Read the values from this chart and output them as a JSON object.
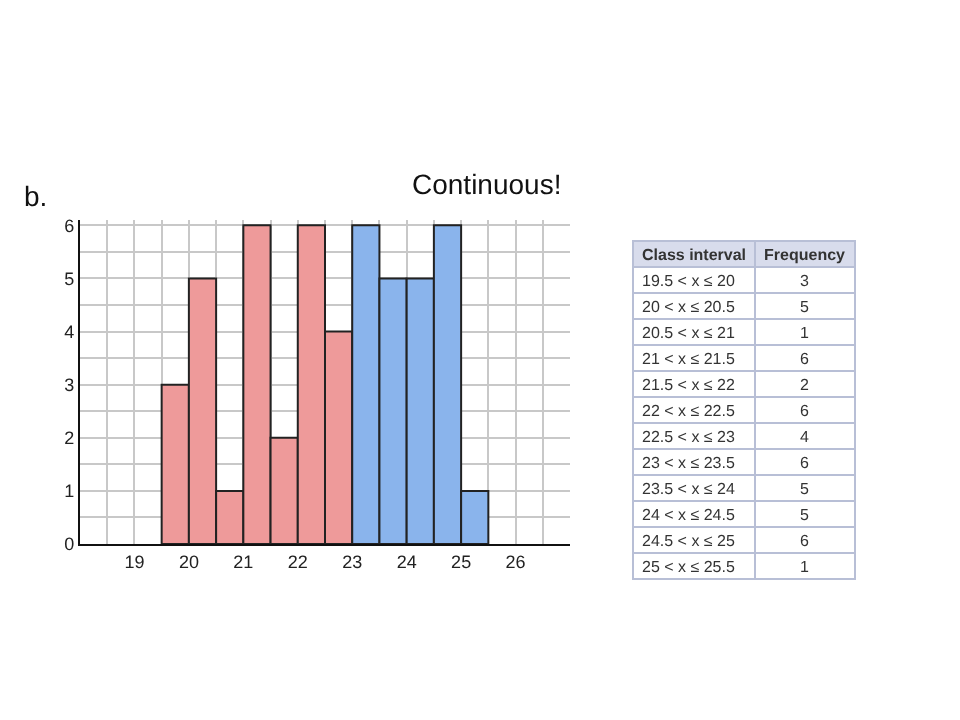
{
  "chart_data": {
    "type": "histogram",
    "annotations": [
      "b.",
      "Continuous!",
      "Class interval",
      "Frequency",
      "19.5 < x ≤ 20",
      "3",
      "20 < x ≤ 20.5",
      "5",
      "20.5 < x ≤ 21",
      "1",
      "21 < x ≤ 21.5",
      "6",
      "21.5 < x ≤ 22",
      "2",
      "22 < x ≤ 22.5",
      "6",
      "22.5 < x ≤ 23",
      "4",
      "23 < x ≤ 23.5",
      "6",
      "23.5 < x ≤ 24",
      "5",
      "24 < x ≤ 24.5",
      "5",
      "24.5 < x ≤ 25",
      "6",
      "25 < x ≤ 25.5",
      "1"
    ],
    "bins": [
      19.5,
      20,
      20.5,
      21,
      21.5,
      22,
      22.5,
      23,
      23.5,
      24,
      24.5,
      25,
      25.5
    ],
    "values": [
      3,
      5,
      1,
      6,
      2,
      6,
      4,
      6,
      5,
      5,
      6,
      1
    ],
    "colors": [
      "#ee9a9a",
      "#ee9a9a",
      "#ee9a9a",
      "#ee9a9a",
      "#ee9a9a",
      "#ee9a9a",
      "#ee9a9a",
      "#8ab4ec",
      "#8ab4ec",
      "#8ab4ec",
      "#8ab4ec",
      "#8ab4ec"
    ],
    "xlim": [
      18,
      27
    ],
    "xticks": [
      {
        "value": 18.5,
        "label": null
      },
      19,
      {
        "value": 19.5,
        "label": null
      },
      20,
      {
        "value": 20.5,
        "label": null
      },
      21,
      {
        "value": 21.5,
        "label": null
      },
      22,
      {
        "value": 22.5,
        "label": null
      },
      23,
      {
        "value": 23.5,
        "label": null
      },
      24,
      {
        "value": 24.5,
        "label": null
      },
      25,
      {
        "value": 25.5,
        "label": null
      },
      26,
      {
        "value": 26.5,
        "label": null
      }
    ],
    "ylim": [
      0,
      6.1
    ],
    "yticks": [
      0,
      {
        "value": 0.5,
        "label": null
      },
      1,
      {
        "value": 1.5,
        "label": null
      },
      2,
      {
        "value": 2.5,
        "label": null
      },
      3,
      {
        "value": 3.5,
        "label": null
      },
      4,
      {
        "value": 4.5,
        "label": null
      },
      5,
      {
        "value": 5.5,
        "label": null
      },
      6
    ],
    "grid": true
  }
}
